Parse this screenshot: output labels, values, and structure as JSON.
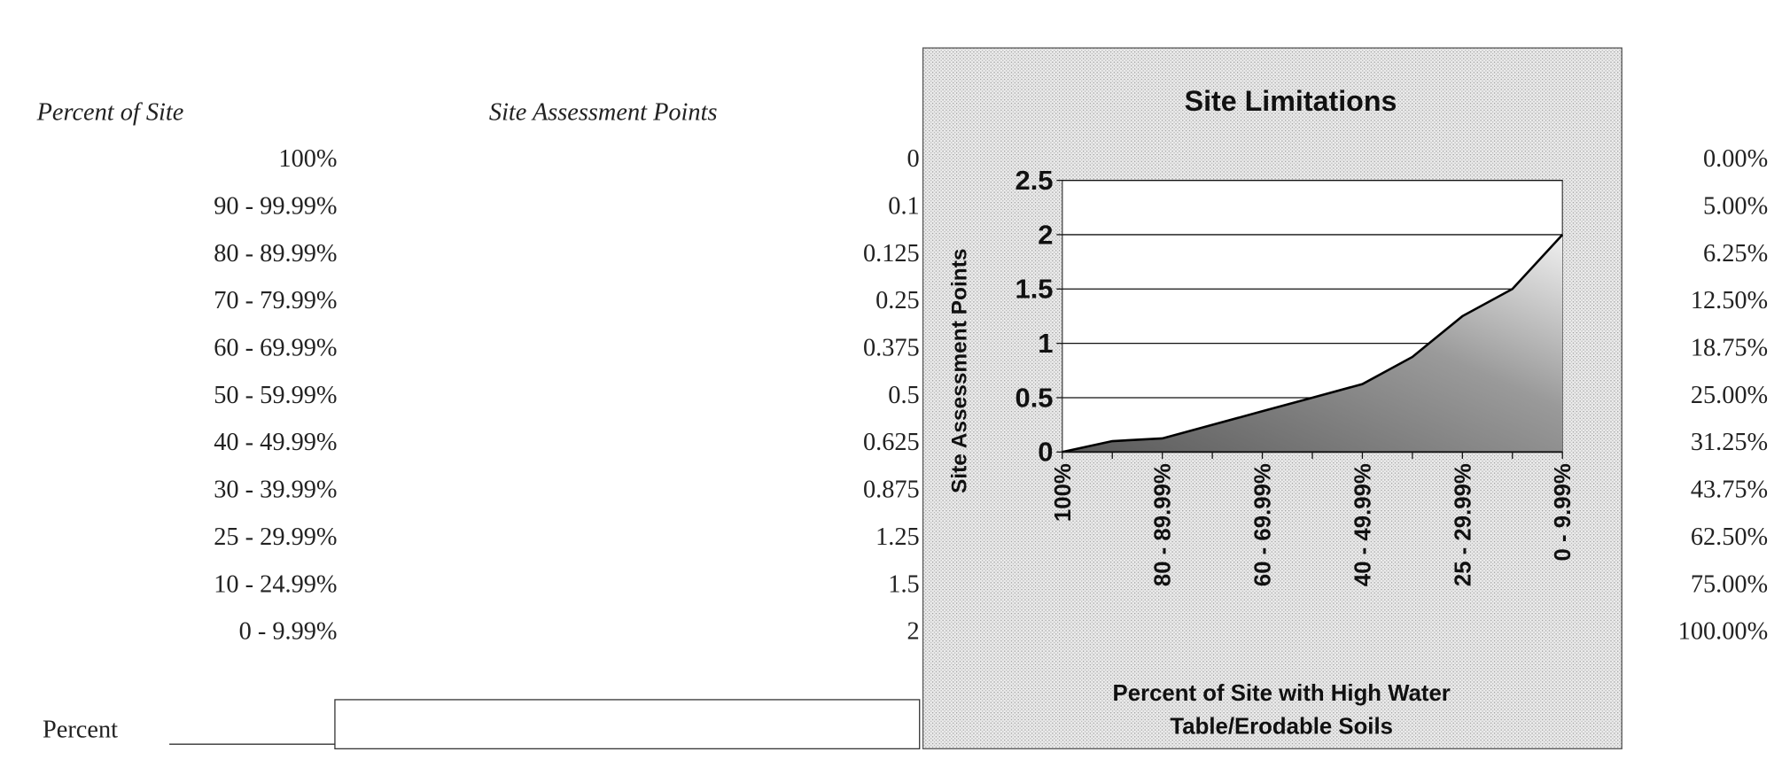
{
  "table": {
    "headers": [
      "Percent of Site",
      "Site Assessment Points"
    ],
    "rows": [
      [
        "100%",
        0,
        "0.00%"
      ],
      [
        "90 - 99.99%",
        0.1,
        "5.00%"
      ],
      [
        "80 - 89.99%",
        0.125,
        "6.25%"
      ],
      [
        "70 - 79.99%",
        0.25,
        "12.50%"
      ],
      [
        "60 - 69.99%",
        0.375,
        "18.75%"
      ],
      [
        "50 - 59.99%",
        0.5,
        "25.00%"
      ],
      [
        "40 - 49.99%",
        0.625,
        "31.25%"
      ],
      [
        "30 - 39.99%",
        0.875,
        "43.75%"
      ],
      [
        "25 - 29.99%",
        1.25,
        "62.50%"
      ],
      [
        "10 - 24.99%",
        1.5,
        "75.00%"
      ],
      [
        "0 - 9.99%",
        2,
        "100.00%"
      ]
    ]
  },
  "input": {
    "label": "Percent"
  },
  "chart_data": {
    "type": "line",
    "title": "Site Limitations",
    "y_label": "Site Assessment Points",
    "x_label": [
      "Percent of Site with High Water",
      "Table/Erodable Soils"
    ],
    "categories": [
      "100%",
      null,
      "80 - 89.99%",
      null,
      "60 - 69.99%",
      null,
      "40 - 49.99%",
      null,
      "25 - 29.99%",
      null,
      "0 - 9.99%"
    ],
    "values": [
      0,
      0.1,
      0.125,
      0.25,
      0.375,
      0.5,
      0.625,
      0.875,
      1.25,
      1.5,
      2
    ],
    "ylim": [
      0,
      2.5
    ],
    "yticks": [
      0,
      0.5,
      1,
      1.5,
      2,
      2.5
    ],
    "grid": true,
    "color": "#000000"
  }
}
